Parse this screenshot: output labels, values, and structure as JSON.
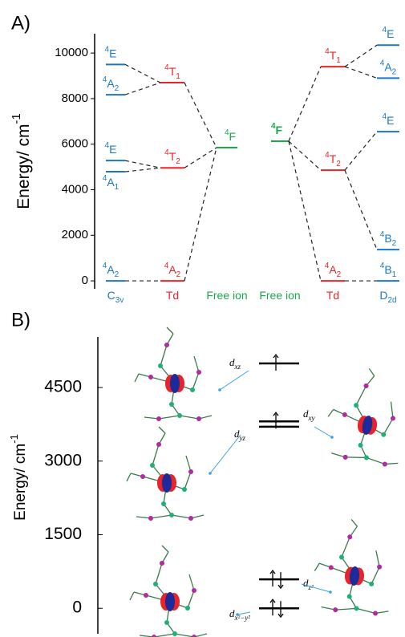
{
  "chart_data": [
    {
      "type": "energy-diagram",
      "panel": "A)",
      "ylabel": {
        "base": "Energy/ cm",
        "sup": "-1"
      },
      "ylim": [
        -350,
        10850
      ],
      "yticks": [
        0,
        2000,
        4000,
        6000,
        8000,
        10000
      ],
      "columns": [
        {
          "name": {
            "base": "C",
            "sub": "3v"
          },
          "color": "#1a78c2",
          "levels": [
            {
              "label": {
                "pre": "4",
                "base": "E"
              },
              "value": 9500
            },
            {
              "label": {
                "pre": "4",
                "base": "A",
                "sub": "2"
              },
              "value": 8170
            },
            {
              "label": {
                "pre": "4",
                "base": "E"
              },
              "value": 5280
            },
            {
              "label": {
                "pre": "4",
                "base": "A",
                "sub": "1"
              },
              "value": 4790
            },
            {
              "label": {
                "pre": "4",
                "base": "A",
                "sub": "2"
              },
              "value": 0
            }
          ]
        },
        {
          "name": {
            "base": "Td"
          },
          "color": "#e8262a",
          "levels": [
            {
              "label": {
                "pre": "4",
                "base": "T",
                "sub": "1"
              },
              "value": 8700
            },
            {
              "label": {
                "pre": "4",
                "base": "T",
                "sub": "2"
              },
              "value": 4960
            },
            {
              "label": {
                "pre": "4",
                "base": "A",
                "sub": "2"
              },
              "value": 0
            }
          ]
        },
        {
          "name": {
            "base": "Free ion"
          },
          "color": "#1aa84c",
          "levels": [
            {
              "label": {
                "pre": "4",
                "base": "F"
              },
              "value": 5850
            }
          ]
        },
        {
          "name": {
            "base": "Free ion"
          },
          "color": "#1aa84c",
          "levels": [
            {
              "label": {
                "pre": "4",
                "base": "F"
              },
              "value": 6130
            }
          ]
        },
        {
          "name": {
            "base": "Td"
          },
          "color": "#e8262a",
          "levels": [
            {
              "label": {
                "pre": "4",
                "base": "T",
                "sub": "1"
              },
              "value": 9400
            },
            {
              "label": {
                "pre": "4",
                "base": "T",
                "sub": "2"
              },
              "value": 4860
            },
            {
              "label": {
                "pre": "4",
                "base": "A",
                "sub": "2"
              },
              "value": 0
            }
          ]
        },
        {
          "name": {
            "base": "D",
            "sub": "2d"
          },
          "color": "#1a78c2",
          "levels": [
            {
              "label": {
                "pre": "4",
                "base": "E"
              },
              "value": 10350
            },
            {
              "label": {
                "pre": "4",
                "base": "A",
                "sub": "2"
              },
              "value": 8900
            },
            {
              "label": {
                "pre": "4",
                "base": "E"
              },
              "value": 6550
            },
            {
              "label": {
                "pre": "4",
                "base": "B",
                "sub": "2"
              },
              "value": 1370
            },
            {
              "label": {
                "pre": "4",
                "base": "B",
                "sub": "1"
              },
              "value": 0
            }
          ]
        }
      ]
    },
    {
      "type": "orbital-diagram",
      "panel": "B)",
      "ylabel": {
        "base": "Energy/ cm",
        "sup": "-1"
      },
      "ylim": [
        -520,
        5530
      ],
      "yticks": [
        0,
        1500,
        3000,
        4500
      ],
      "levels": [
        {
          "label": {
            "base": "d",
            "sub": "xz"
          },
          "value": 4990
        },
        {
          "label": {
            "base": "d",
            "sub": "xy"
          },
          "value": 3810
        },
        {
          "label": {
            "base": "d",
            "sub": "yz"
          },
          "value": 3700
        },
        {
          "label": {
            "base": "d",
            "sub": "z²"
          },
          "value": 590
        },
        {
          "label": {
            "base": "d",
            "sub": "x²−y²"
          },
          "value": 0
        }
      ]
    }
  ]
}
